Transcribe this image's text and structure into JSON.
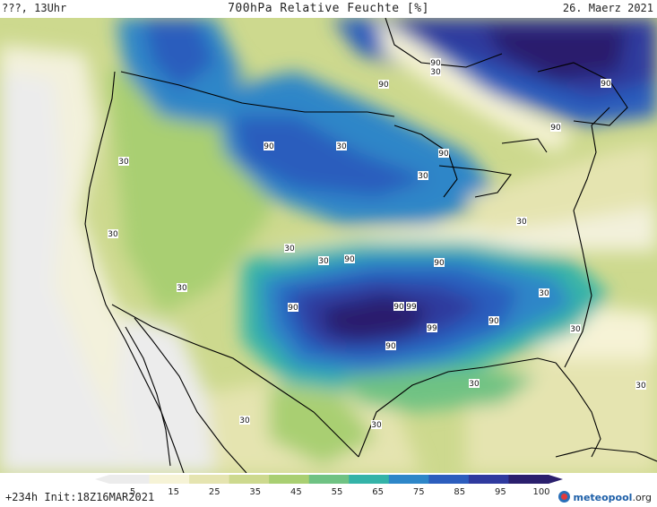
{
  "header": {
    "left": "???, 13Uhr",
    "title": "700hPa Relative Feuchte [%]",
    "date": "26. Maerz 2021"
  },
  "footer": {
    "run_info": "+234h  Init:18Z16MAR2021",
    "logo_text": "meteopool",
    "logo_suffix": ".org"
  },
  "colorbar": {
    "ticks": [
      "5",
      "15",
      "25",
      "35",
      "45",
      "55",
      "65",
      "75",
      "85",
      "95",
      "100"
    ],
    "colors": [
      "#ececec",
      "#f6f3d6",
      "#e5e4b0",
      "#cdd98e",
      "#a9cf72",
      "#6fc283",
      "#34b3a8",
      "#2d86c8",
      "#2c5dbd",
      "#2f3a9e",
      "#2a1f6d"
    ]
  },
  "map": {
    "contour_labels": [
      {
        "id": "lbl-1",
        "text": "90"
      },
      {
        "id": "lbl-2",
        "text": "90"
      },
      {
        "id": "lbl-3",
        "text": "30"
      },
      {
        "id": "lbl-4",
        "text": "90"
      },
      {
        "id": "lbl-5",
        "text": "90"
      },
      {
        "id": "lbl-6",
        "text": "90"
      },
      {
        "id": "lbl-7",
        "text": "30"
      },
      {
        "id": "lbl-8",
        "text": "30"
      },
      {
        "id": "lbl-9",
        "text": "90"
      },
      {
        "id": "lbl-10",
        "text": "30"
      },
      {
        "id": "lbl-11",
        "text": "30"
      },
      {
        "id": "lbl-12",
        "text": "30"
      },
      {
        "id": "lbl-13",
        "text": "30"
      },
      {
        "id": "lbl-14",
        "text": "30"
      },
      {
        "id": "lbl-15",
        "text": "90"
      },
      {
        "id": "lbl-16",
        "text": "90"
      },
      {
        "id": "lbl-17",
        "text": "30"
      },
      {
        "id": "lbl-18",
        "text": "30"
      },
      {
        "id": "lbl-19",
        "text": "90"
      },
      {
        "id": "lbl-20",
        "text": "90"
      },
      {
        "id": "lbl-21",
        "text": "99"
      },
      {
        "id": "lbl-22",
        "text": "99"
      },
      {
        "id": "lbl-23",
        "text": "90"
      },
      {
        "id": "lbl-24",
        "text": "90"
      },
      {
        "id": "lbl-25",
        "text": "30"
      },
      {
        "id": "lbl-26",
        "text": "30"
      },
      {
        "id": "lbl-27",
        "text": "30"
      },
      {
        "id": "lbl-28",
        "text": "30"
      },
      {
        "id": "lbl-29",
        "text": "30"
      }
    ]
  }
}
